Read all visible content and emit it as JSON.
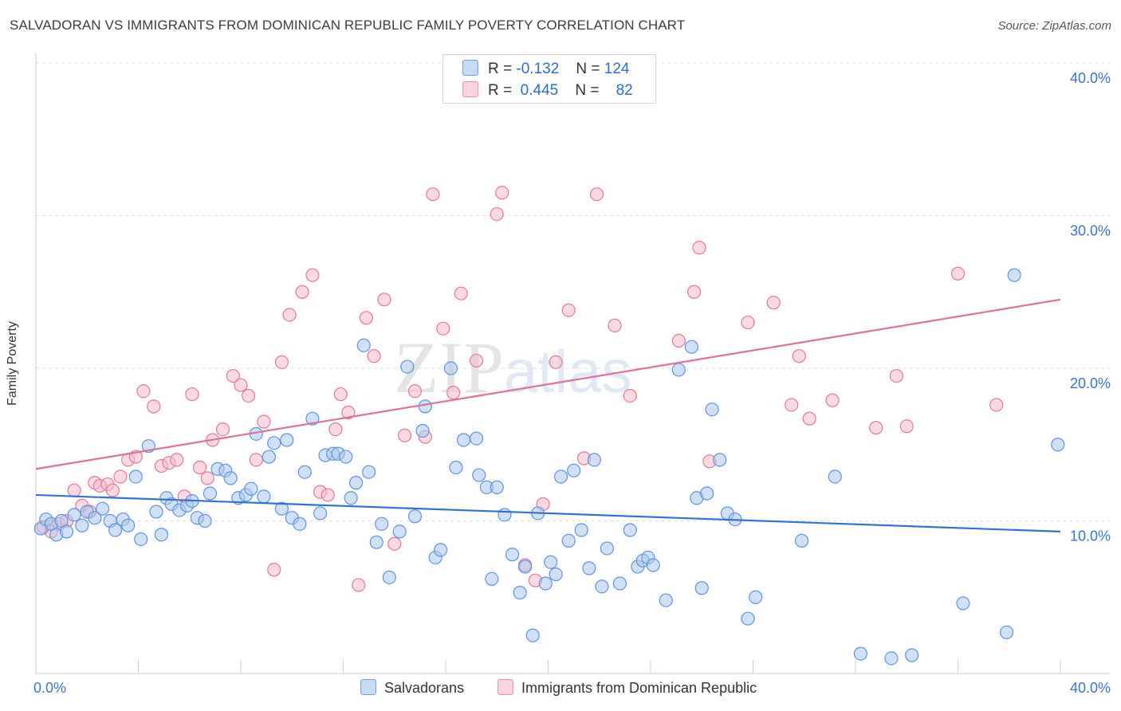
{
  "title": "SALVADORAN VS IMMIGRANTS FROM DOMINICAN REPUBLIC FAMILY POVERTY CORRELATION CHART",
  "source": "Source: ZipAtlas.com",
  "watermark": {
    "zip": "ZIP",
    "atlas": "atlas"
  },
  "legend": {
    "rows": [
      {
        "r_label": "R =",
        "r_value": "-0.132",
        "n_label": "N =",
        "n_value": "124",
        "color": "#a9c8f0"
      },
      {
        "r_label": "R =",
        "r_value": "0.445",
        "n_label": "N =",
        "n_value": "82",
        "color": "#f7b9cc"
      }
    ]
  },
  "bottom_legend": [
    {
      "label": "Salvadorans",
      "color": "#a9c8f0"
    },
    {
      "label": "Immigrants from Dominican Republic",
      "color": "#f7b9cc"
    }
  ],
  "chart_data": {
    "type": "scatter",
    "title": "SALVADORAN VS IMMIGRANTS FROM DOMINICAN REPUBLIC FAMILY POVERTY CORRELATION CHART",
    "xlabel": "",
    "ylabel": "Family Poverty",
    "xlim": [
      0,
      40
    ],
    "ylim": [
      0,
      40
    ],
    "x_tick_labels": [
      "0.0%",
      "40.0%"
    ],
    "y_ticks": [
      10,
      20,
      30,
      40
    ],
    "y_tick_labels": [
      "10.0%",
      "20.0%",
      "30.0%",
      "40.0%"
    ],
    "grid": "horizontal dashed",
    "legend_placement": "top-center",
    "series": [
      {
        "name": "Salvadorans",
        "color": "#5b94dd",
        "fill": "#a9c8f0",
        "trend": {
          "x": [
            0,
            40
          ],
          "y": [
            11.7,
            9.3
          ]
        },
        "points": [
          [
            0.2,
            9.5
          ],
          [
            0.4,
            10.1
          ],
          [
            0.6,
            9.8
          ],
          [
            0.8,
            9.1
          ],
          [
            1.0,
            10.0
          ],
          [
            1.2,
            9.3
          ],
          [
            1.5,
            10.4
          ],
          [
            1.8,
            9.7
          ],
          [
            2.0,
            10.6
          ],
          [
            2.3,
            10.2
          ],
          [
            2.6,
            10.8
          ],
          [
            2.9,
            10.0
          ],
          [
            3.1,
            9.4
          ],
          [
            3.4,
            10.1
          ],
          [
            3.6,
            9.7
          ],
          [
            3.9,
            12.9
          ],
          [
            4.1,
            8.8
          ],
          [
            4.4,
            14.9
          ],
          [
            4.7,
            10.6
          ],
          [
            4.9,
            9.1
          ],
          [
            5.1,
            11.5
          ],
          [
            5.3,
            11.1
          ],
          [
            5.6,
            10.7
          ],
          [
            5.9,
            11.0
          ],
          [
            6.1,
            11.3
          ],
          [
            6.3,
            10.2
          ],
          [
            6.6,
            10.0
          ],
          [
            6.8,
            11.8
          ],
          [
            7.1,
            13.4
          ],
          [
            7.4,
            13.3
          ],
          [
            7.6,
            12.8
          ],
          [
            7.9,
            11.5
          ],
          [
            8.2,
            11.7
          ],
          [
            8.4,
            12.1
          ],
          [
            8.6,
            15.7
          ],
          [
            8.9,
            11.6
          ],
          [
            9.1,
            14.2
          ],
          [
            9.3,
            15.1
          ],
          [
            9.6,
            10.8
          ],
          [
            9.8,
            15.3
          ],
          [
            10.0,
            10.2
          ],
          [
            10.3,
            9.8
          ],
          [
            10.5,
            13.2
          ],
          [
            10.8,
            16.7
          ],
          [
            11.1,
            10.5
          ],
          [
            11.3,
            14.3
          ],
          [
            11.6,
            14.4
          ],
          [
            11.8,
            14.4
          ],
          [
            12.1,
            14.2
          ],
          [
            12.3,
            11.5
          ],
          [
            12.5,
            12.5
          ],
          [
            12.8,
            21.5
          ],
          [
            13.0,
            13.2
          ],
          [
            13.3,
            8.6
          ],
          [
            13.5,
            9.8
          ],
          [
            13.8,
            6.3
          ],
          [
            14.2,
            9.3
          ],
          [
            14.5,
            20.1
          ],
          [
            14.8,
            10.3
          ],
          [
            15.1,
            15.9
          ],
          [
            15.2,
            17.5
          ],
          [
            15.6,
            7.6
          ],
          [
            15.8,
            8.1
          ],
          [
            16.2,
            20.0
          ],
          [
            16.4,
            13.5
          ],
          [
            16.7,
            15.3
          ],
          [
            17.2,
            15.4
          ],
          [
            17.3,
            13.0
          ],
          [
            17.6,
            12.2
          ],
          [
            17.8,
            6.2
          ],
          [
            18.0,
            12.2
          ],
          [
            18.3,
            10.4
          ],
          [
            18.6,
            7.8
          ],
          [
            18.9,
            5.3
          ],
          [
            19.1,
            7.0
          ],
          [
            19.4,
            2.5
          ],
          [
            19.6,
            10.5
          ],
          [
            19.9,
            5.9
          ],
          [
            20.1,
            7.3
          ],
          [
            20.3,
            6.5
          ],
          [
            20.5,
            12.9
          ],
          [
            20.8,
            8.7
          ],
          [
            21.0,
            13.3
          ],
          [
            21.3,
            9.4
          ],
          [
            21.6,
            6.9
          ],
          [
            21.8,
            14.0
          ],
          [
            22.1,
            5.7
          ],
          [
            22.3,
            8.2
          ],
          [
            22.8,
            5.9
          ],
          [
            23.2,
            9.4
          ],
          [
            23.5,
            7.0
          ],
          [
            23.7,
            7.4
          ],
          [
            23.9,
            7.6
          ],
          [
            24.1,
            7.1
          ],
          [
            24.6,
            4.8
          ],
          [
            25.1,
            19.9
          ],
          [
            25.6,
            21.4
          ],
          [
            25.8,
            11.5
          ],
          [
            26.0,
            5.6
          ],
          [
            26.2,
            11.8
          ],
          [
            26.4,
            17.3
          ],
          [
            26.7,
            14.0
          ],
          [
            27.0,
            10.5
          ],
          [
            27.3,
            10.1
          ],
          [
            27.8,
            3.6
          ],
          [
            28.1,
            5.0
          ],
          [
            29.9,
            8.7
          ],
          [
            31.2,
            12.9
          ],
          [
            32.2,
            1.3
          ],
          [
            33.4,
            1.0
          ],
          [
            34.2,
            1.2
          ],
          [
            36.2,
            4.6
          ],
          [
            37.9,
            2.7
          ],
          [
            38.2,
            26.1
          ],
          [
            39.9,
            15.0
          ]
        ]
      },
      {
        "name": "Immigrants from Dominican Republic",
        "color": "#e0789a",
        "fill": "#f7b9cc",
        "trend": {
          "x": [
            0,
            40
          ],
          "y": [
            13.4,
            24.5
          ]
        },
        "points": [
          [
            0.3,
            9.6
          ],
          [
            0.6,
            9.3
          ],
          [
            0.9,
            9.8
          ],
          [
            1.2,
            10.0
          ],
          [
            1.5,
            12.0
          ],
          [
            1.8,
            11.0
          ],
          [
            2.1,
            10.6
          ],
          [
            2.3,
            12.5
          ],
          [
            2.5,
            12.3
          ],
          [
            2.8,
            12.4
          ],
          [
            3.0,
            12.0
          ],
          [
            3.3,
            12.9
          ],
          [
            3.6,
            14.0
          ],
          [
            3.9,
            14.2
          ],
          [
            4.2,
            18.5
          ],
          [
            4.6,
            17.5
          ],
          [
            4.9,
            13.6
          ],
          [
            5.2,
            13.8
          ],
          [
            5.5,
            14.0
          ],
          [
            5.8,
            11.6
          ],
          [
            6.1,
            18.3
          ],
          [
            6.4,
            13.5
          ],
          [
            6.7,
            12.8
          ],
          [
            6.9,
            15.3
          ],
          [
            7.3,
            16.0
          ],
          [
            7.7,
            19.5
          ],
          [
            8.0,
            18.9
          ],
          [
            8.3,
            18.2
          ],
          [
            8.6,
            14.0
          ],
          [
            8.9,
            16.5
          ],
          [
            9.3,
            6.8
          ],
          [
            9.6,
            20.4
          ],
          [
            9.9,
            23.5
          ],
          [
            10.4,
            25.0
          ],
          [
            10.8,
            26.1
          ],
          [
            11.1,
            11.9
          ],
          [
            11.4,
            11.7
          ],
          [
            11.7,
            16.0
          ],
          [
            11.9,
            18.3
          ],
          [
            12.2,
            17.1
          ],
          [
            12.6,
            5.8
          ],
          [
            12.9,
            23.3
          ],
          [
            13.2,
            20.8
          ],
          [
            13.6,
            24.5
          ],
          [
            14.0,
            8.5
          ],
          [
            14.4,
            15.6
          ],
          [
            14.8,
            18.5
          ],
          [
            15.2,
            15.5
          ],
          [
            15.5,
            31.4
          ],
          [
            15.9,
            22.6
          ],
          [
            16.3,
            18.4
          ],
          [
            16.6,
            24.9
          ],
          [
            17.2,
            20.5
          ],
          [
            18.0,
            30.1
          ],
          [
            18.2,
            31.5
          ],
          [
            19.1,
            7.1
          ],
          [
            19.5,
            6.1
          ],
          [
            19.8,
            11.1
          ],
          [
            20.3,
            20.4
          ],
          [
            20.8,
            23.8
          ],
          [
            21.4,
            14.1
          ],
          [
            21.9,
            31.4
          ],
          [
            22.6,
            22.8
          ],
          [
            23.2,
            18.2
          ],
          [
            25.1,
            21.8
          ],
          [
            25.7,
            25.0
          ],
          [
            25.9,
            27.9
          ],
          [
            26.3,
            13.9
          ],
          [
            27.8,
            23.0
          ],
          [
            28.8,
            24.3
          ],
          [
            29.5,
            17.6
          ],
          [
            29.8,
            20.8
          ],
          [
            30.2,
            16.7
          ],
          [
            31.1,
            17.9
          ],
          [
            32.8,
            16.1
          ],
          [
            33.6,
            19.5
          ],
          [
            34.0,
            16.2
          ],
          [
            36.0,
            26.2
          ],
          [
            37.5,
            17.6
          ]
        ]
      }
    ]
  }
}
